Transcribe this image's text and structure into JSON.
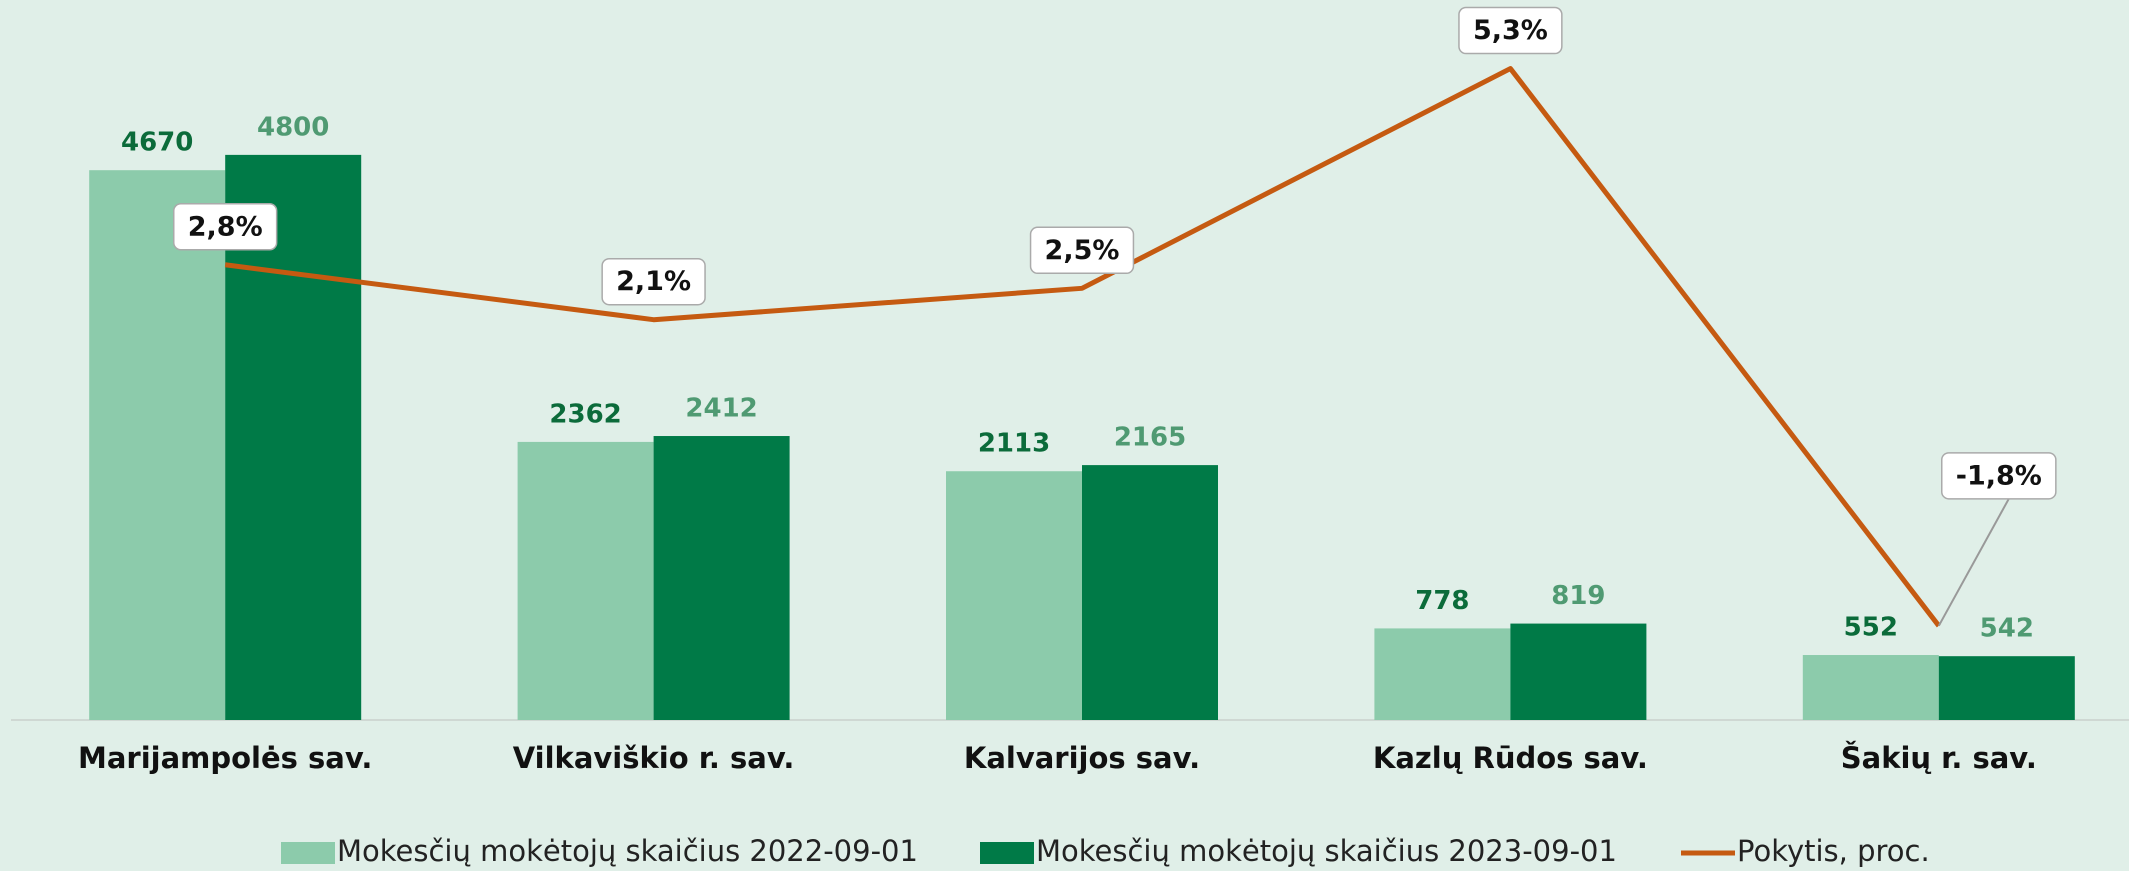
{
  "chart_data": {
    "type": "bar",
    "categories": [
      "Marijampolės sav.",
      "Vilkaviškio r. sav.",
      "Kalvarijos sav.",
      "Kazlų Rūdos sav.",
      "Šakių r. sav."
    ],
    "series": [
      {
        "name": "Mokesčių mokėtojų skaičius 2022-09-01",
        "color": "#8ccbab",
        "label_color": "#0b6b3a",
        "values": [
          4670,
          2362,
          2113,
          778,
          552
        ]
      },
      {
        "name": "Mokesčių mokėtojų skaičius 2023-09-01",
        "color": "#007a47",
        "label_color": "#4f9a72",
        "values": [
          4800,
          2412,
          2165,
          819,
          542
        ]
      },
      {
        "name": "Pokytis, proc.",
        "type": "line",
        "axis": "y2",
        "color": "#c55a11",
        "values": [
          2.8,
          2.1,
          2.5,
          5.3,
          -1.8
        ],
        "value_labels": [
          "2,8%",
          "2,1%",
          "2,5%",
          "5,3%",
          "-1,8%"
        ]
      }
    ],
    "ylim": [
      0,
      6000
    ],
    "y2lim": [
      -3,
      6
    ],
    "legend": "bottom"
  }
}
